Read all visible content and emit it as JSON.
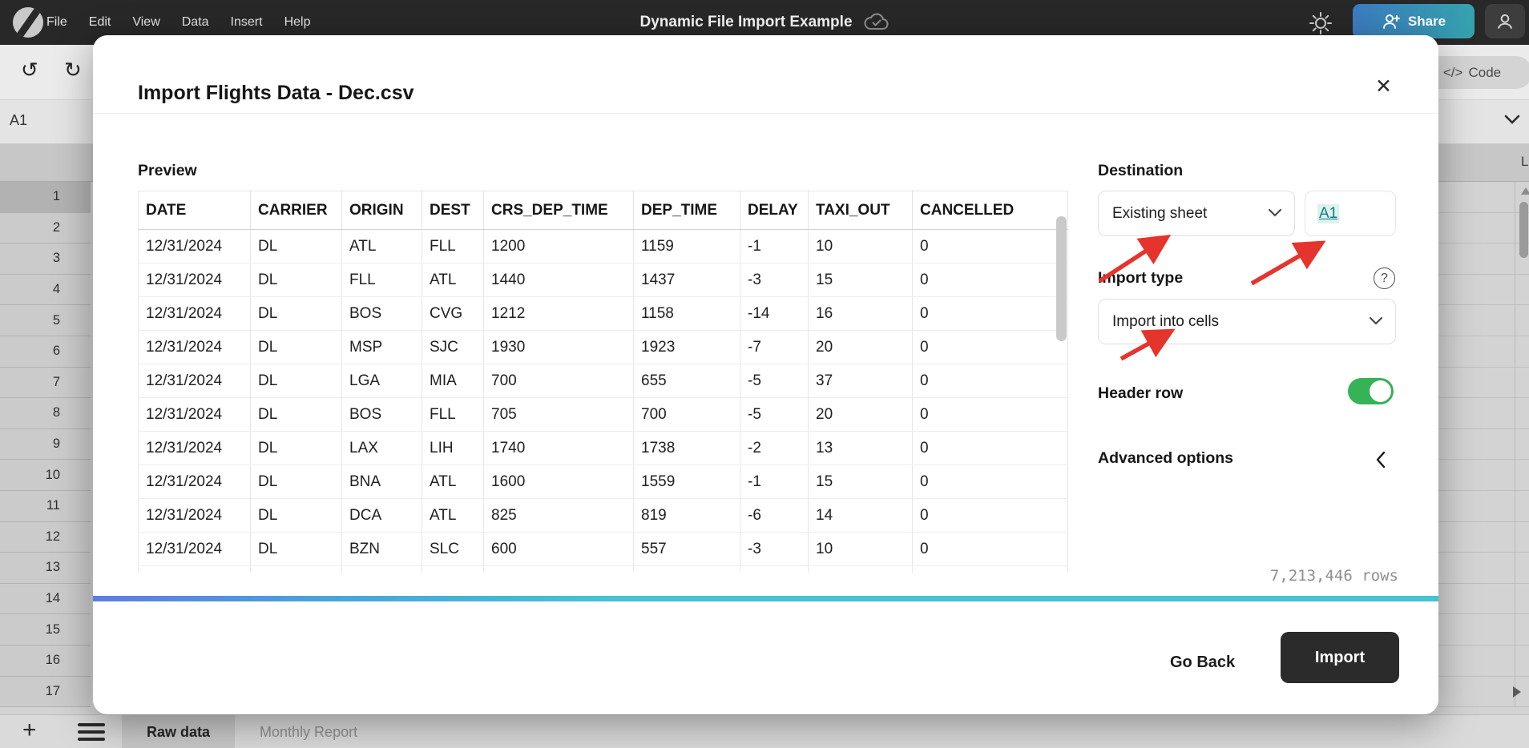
{
  "topbar": {
    "menus": [
      "File",
      "Edit",
      "View",
      "Data",
      "Insert",
      "Help"
    ],
    "doc_title": "Dynamic File Import Example",
    "share_label": "Share"
  },
  "toolbar": {
    "code_glyph": "</>",
    "code_label": "Code"
  },
  "formula_bar": {
    "cell_ref": "A1"
  },
  "grid": {
    "row_numbers": [
      "1",
      "2",
      "3",
      "4",
      "5",
      "6",
      "7",
      "8",
      "9",
      "10",
      "11",
      "12",
      "13",
      "14",
      "15",
      "16",
      "17"
    ],
    "selected_row": "1",
    "visible_column_letter": "L"
  },
  "sheet_bar": {
    "tabs": [
      {
        "label": "Raw data",
        "active": true
      },
      {
        "label": "Monthly Report",
        "active": false
      }
    ]
  },
  "dialog": {
    "title": "Import Flights Data - Dec.csv",
    "preview": {
      "heading": "Preview",
      "columns": [
        "DATE",
        "CARRIER",
        "ORIGIN",
        "DEST",
        "CRS_DEP_TIME",
        "DEP_TIME",
        "DELAY",
        "TAXI_OUT",
        "CANCELLED"
      ],
      "rows": [
        [
          "12/31/2024",
          "DL",
          "ATL",
          "FLL",
          "1200",
          "1159",
          "-1",
          "10",
          "0"
        ],
        [
          "12/31/2024",
          "DL",
          "FLL",
          "ATL",
          "1440",
          "1437",
          "-3",
          "15",
          "0"
        ],
        [
          "12/31/2024",
          "DL",
          "BOS",
          "CVG",
          "1212",
          "1158",
          "-14",
          "16",
          "0"
        ],
        [
          "12/31/2024",
          "DL",
          "MSP",
          "SJC",
          "1930",
          "1923",
          "-7",
          "20",
          "0"
        ],
        [
          "12/31/2024",
          "DL",
          "LGA",
          "MIA",
          "700",
          "655",
          "-5",
          "37",
          "0"
        ],
        [
          "12/31/2024",
          "DL",
          "BOS",
          "FLL",
          "705",
          "700",
          "-5",
          "20",
          "0"
        ],
        [
          "12/31/2024",
          "DL",
          "LAX",
          "LIH",
          "1740",
          "1738",
          "-2",
          "13",
          "0"
        ],
        [
          "12/31/2024",
          "DL",
          "BNA",
          "ATL",
          "1600",
          "1559",
          "-1",
          "15",
          "0"
        ],
        [
          "12/31/2024",
          "DL",
          "DCA",
          "ATL",
          "825",
          "819",
          "-6",
          "14",
          "0"
        ],
        [
          "12/31/2024",
          "DL",
          "BZN",
          "SLC",
          "600",
          "557",
          "-3",
          "10",
          "0"
        ]
      ]
    },
    "destination": {
      "heading": "Destination",
      "selected": "Existing sheet",
      "cell_ref": "A1"
    },
    "import_type": {
      "heading": "Import type",
      "selected": "Import into cells",
      "help_glyph": "?"
    },
    "header_row": {
      "label": "Header row",
      "enabled": true
    },
    "advanced": {
      "label": "Advanced options"
    },
    "row_count": "7,213,446 rows",
    "buttons": {
      "go_back": "Go Back",
      "import": "Import"
    }
  },
  "colors": {
    "accent_teal": "#46c2d0",
    "toggle_green": "#36b257",
    "annotation_red": "#e5342c",
    "link_teal": "#0e8181",
    "share_gradient_start": "#3c7cc1",
    "share_gradient_end": "#35a2ad"
  }
}
